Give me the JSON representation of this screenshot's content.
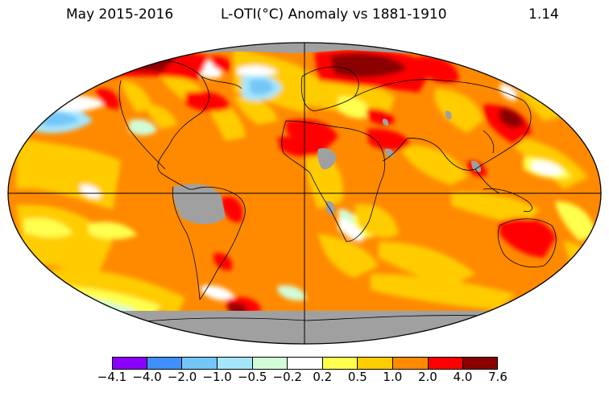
{
  "title": {
    "period": "May 2015-2016",
    "variable": "L-OTI(°C) Anomaly vs 1881-1910",
    "global_mean": "1.14"
  },
  "legend": {
    "bins": [
      {
        "label": "-4.1",
        "color": "#8b00ff"
      },
      {
        "label": "-4.0",
        "color": "#3f8fff"
      },
      {
        "label": "-2.0",
        "color": "#73c6f7"
      },
      {
        "label": "-1.0",
        "color": "#a5e6fc"
      },
      {
        "label": "-0.5",
        "color": "#d2fcd7"
      },
      {
        "label": "-0.2",
        "color": "#ffffff"
      },
      {
        "label": "0.2",
        "color": "#ffff4d"
      },
      {
        "label": "0.5",
        "color": "#ffcc00"
      },
      {
        "label": "1.0",
        "color": "#ff8a00"
      },
      {
        "label": "2.0",
        "color": "#ff0000"
      },
      {
        "label": "4.0",
        "color": "#8b0000"
      }
    ],
    "tick_labels": [
      "−4.1",
      "−4.0",
      "−2.0",
      "−1.0",
      "−0.5",
      "−0.2",
      "0.2",
      "0.5",
      "1.0",
      "2.0",
      "4.0",
      "7.6"
    ],
    "nodata_color": "#a0a0a0"
  }
}
